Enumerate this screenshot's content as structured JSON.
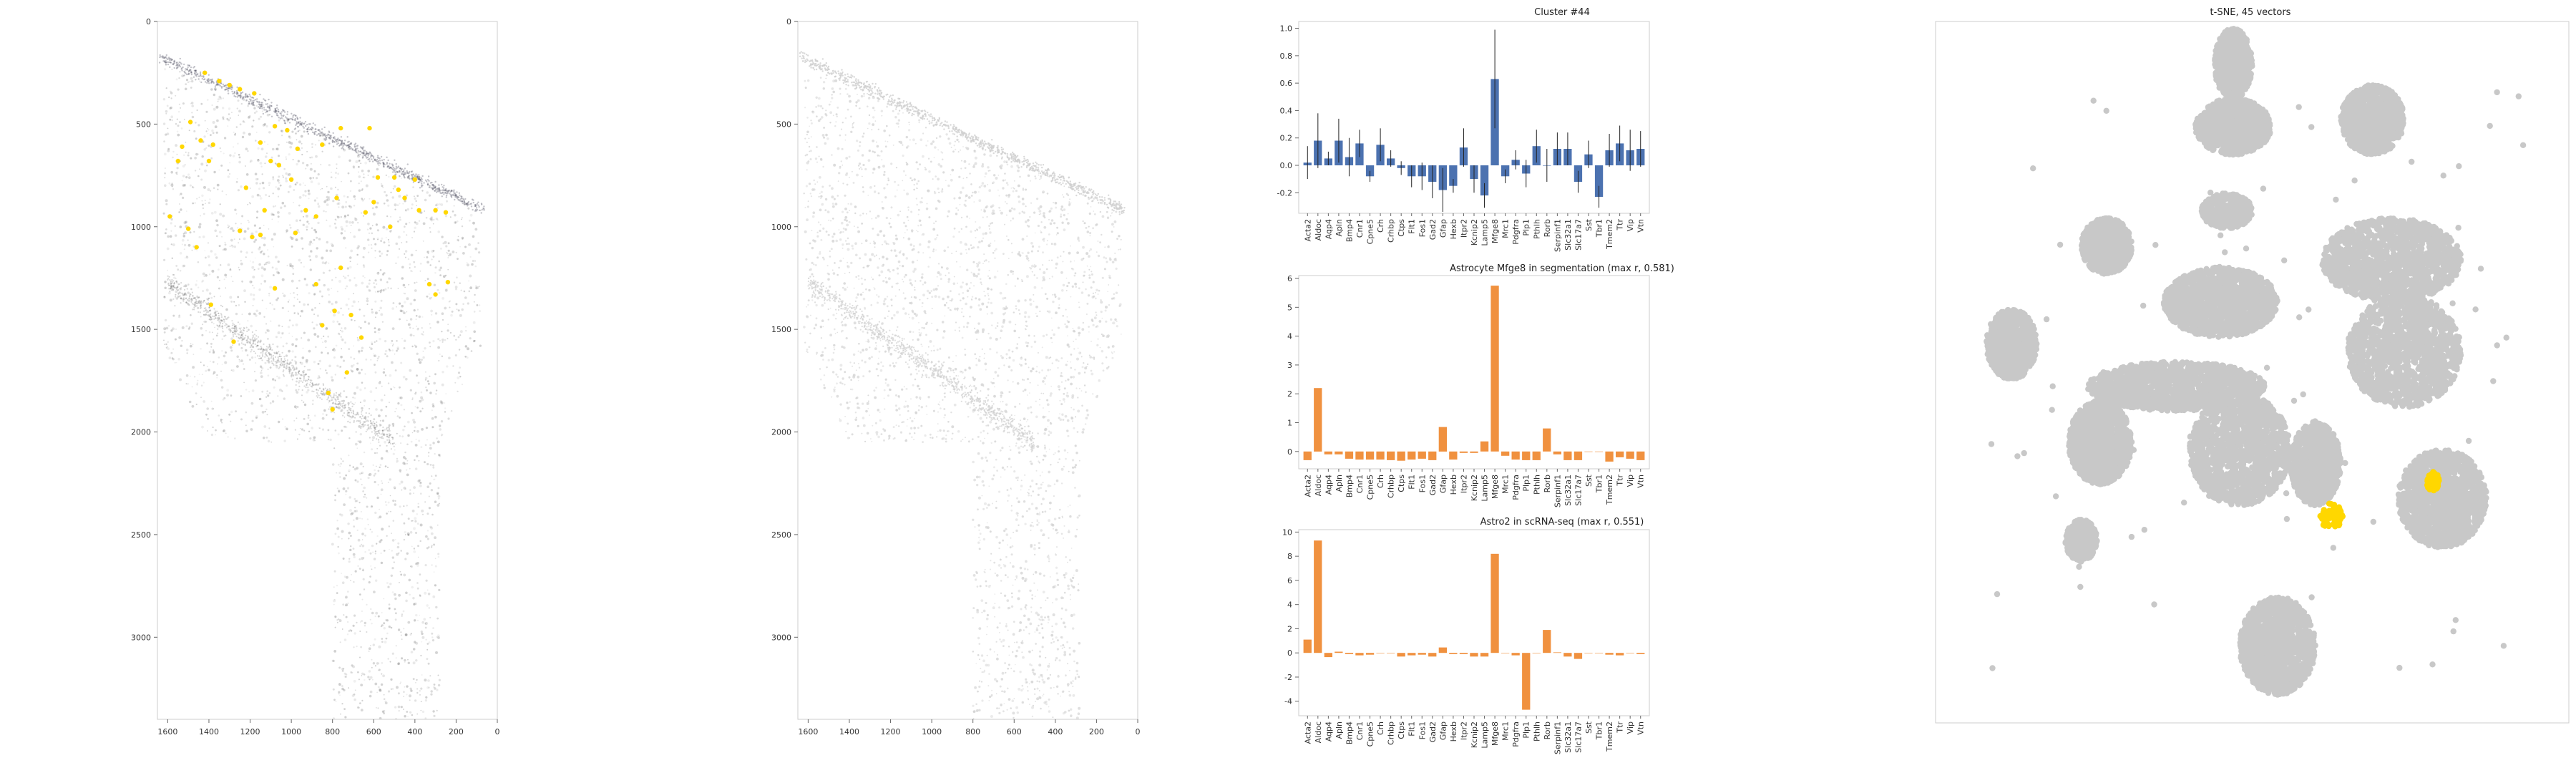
{
  "colors": {
    "bar_blue": "#4c72b0",
    "bar_orange": "#f0913f",
    "tsne_gray": "#c8c8c8",
    "highlight_yellow": "#ffd700",
    "tissue_gray": "#d4d4d4",
    "axis_frame": "#cccccc"
  },
  "chart_data": [
    {
      "id": "spatial_left",
      "type": "scatter",
      "title": "",
      "xlim": [
        1650,
        0
      ],
      "ylim": [
        3400,
        0
      ],
      "x_ticks": [
        "1600",
        "1400",
        "1200",
        "1000",
        "800",
        "600",
        "400",
        "200",
        "0"
      ],
      "y_ticks": [
        "0",
        "500",
        "1000",
        "1500",
        "2000",
        "2500",
        "3000"
      ],
      "highlight_points": [
        [
          1420,
          250
        ],
        [
          1350,
          290
        ],
        [
          1300,
          310
        ],
        [
          1250,
          330
        ],
        [
          1180,
          350
        ],
        [
          1490,
          490
        ],
        [
          1530,
          610
        ],
        [
          1440,
          580
        ],
        [
          1380,
          600
        ],
        [
          1550,
          680
        ],
        [
          1400,
          680
        ],
        [
          1150,
          590
        ],
        [
          1080,
          510
        ],
        [
          1020,
          530
        ],
        [
          970,
          620
        ],
        [
          850,
          600
        ],
        [
          760,
          520
        ],
        [
          620,
          520
        ],
        [
          580,
          760
        ],
        [
          500,
          760
        ],
        [
          480,
          820
        ],
        [
          450,
          860
        ],
        [
          380,
          920
        ],
        [
          400,
          770
        ],
        [
          300,
          920
        ],
        [
          250,
          930
        ],
        [
          1100,
          680
        ],
        [
          1060,
          700
        ],
        [
          1000,
          770
        ],
        [
          1220,
          810
        ],
        [
          1130,
          920
        ],
        [
          1250,
          1020
        ],
        [
          1150,
          1040
        ],
        [
          930,
          920
        ],
        [
          880,
          950
        ],
        [
          780,
          860
        ],
        [
          640,
          930
        ],
        [
          600,
          880
        ],
        [
          520,
          1000
        ],
        [
          1590,
          950
        ],
        [
          1500,
          1010
        ],
        [
          1460,
          1100
        ],
        [
          1190,
          1050
        ],
        [
          980,
          1030
        ],
        [
          760,
          1200
        ],
        [
          330,
          1280
        ],
        [
          300,
          1330
        ],
        [
          240,
          1270
        ],
        [
          1390,
          1380
        ],
        [
          1280,
          1560
        ],
        [
          1080,
          1300
        ],
        [
          880,
          1280
        ],
        [
          790,
          1410
        ],
        [
          710,
          1430
        ],
        [
          850,
          1480
        ],
        [
          730,
          1710
        ],
        [
          820,
          1810
        ],
        [
          800,
          1890
        ],
        [
          660,
          1540
        ]
      ]
    },
    {
      "id": "spatial_middle",
      "type": "scatter",
      "title": "",
      "xlim": [
        1650,
        0
      ],
      "ylim": [
        3400,
        0
      ],
      "x_ticks": [
        "1600",
        "1400",
        "1200",
        "1000",
        "800",
        "600",
        "400",
        "200",
        "0"
      ],
      "y_ticks": [
        "0",
        "500",
        "1000",
        "1500",
        "2000",
        "2500",
        "3000"
      ]
    },
    {
      "id": "cluster_bar",
      "type": "bar",
      "title": "Cluster #44",
      "ylim": [
        -0.35,
        1.05
      ],
      "y_ticks": [
        "1.0",
        "0.8",
        "0.6",
        "0.4",
        "0.2",
        "0.0",
        "-0.2"
      ],
      "y_tick_values": [
        1.0,
        0.8,
        0.6,
        0.4,
        0.2,
        0.0,
        -0.2
      ],
      "categories": [
        "Acta2",
        "Aldoc",
        "Aqp4",
        "Apln",
        "Bmp4",
        "Cnr1",
        "Cpne5",
        "Crh",
        "Crhbp",
        "Ctps",
        "Flt1",
        "Fos1",
        "Gad2",
        "Gfap",
        "Hexb",
        "Itpr2",
        "Kcnip2",
        "Lamp5",
        "Mfge8",
        "Mrc1",
        "Pdgfra",
        "Plp1",
        "Pthlh",
        "Rorb",
        "Serpinf1",
        "Slc32a1",
        "Slc17a7",
        "Sst",
        "Tbr1",
        "Tmem2",
        "Ttr",
        "Vip",
        "Vtn"
      ],
      "values": [
        0.02,
        0.18,
        0.05,
        0.18,
        0.06,
        0.16,
        -0.08,
        0.15,
        0.05,
        -0.02,
        -0.08,
        -0.08,
        -0.12,
        -0.18,
        -0.15,
        0.13,
        -0.1,
        -0.22,
        0.63,
        -0.08,
        0.04,
        -0.06,
        0.14,
        0.0,
        0.12,
        0.12,
        -0.12,
        0.08,
        -0.23,
        0.11,
        0.16,
        0.11,
        0.12
      ],
      "errors": [
        0.12,
        0.2,
        0.05,
        0.16,
        0.14,
        0.1,
        0.04,
        0.12,
        0.06,
        0.05,
        0.08,
        0.1,
        0.12,
        0.16,
        0.05,
        0.14,
        0.1,
        0.09,
        0.36,
        0.05,
        0.07,
        0.1,
        0.12,
        0.12,
        0.12,
        0.12,
        0.08,
        0.1,
        0.08,
        0.12,
        0.13,
        0.15,
        0.13
      ]
    },
    {
      "id": "astro_seg_bar",
      "type": "bar",
      "title": "Astrocyte Mfge8 in segmentation (max r, 0.581)",
      "ylim": [
        -0.6,
        6.1
      ],
      "y_ticks": [
        "6",
        "5",
        "4",
        "3",
        "2",
        "1",
        "0"
      ],
      "y_tick_values": [
        6,
        5,
        4,
        3,
        2,
        1,
        0
      ],
      "categories": [
        "Acta2",
        "Aldoc",
        "Aqp4",
        "Apln",
        "Bmp4",
        "Cnr1",
        "Cpne5",
        "Crh",
        "Crhbp",
        "Ctps",
        "Flt1",
        "Fos1",
        "Gad2",
        "Gfap",
        "Hexb",
        "Itpr2",
        "Kcnip2",
        "Lamp5",
        "Mfge8",
        "Mrc1",
        "Pdgfra",
        "Plp1",
        "Pthlh",
        "Rorb",
        "Serpinf1",
        "Slc32a1",
        "Slc17a7",
        "Sst",
        "Tbr1",
        "Tmem2",
        "Ttr",
        "Vip",
        "Vtn"
      ],
      "values": [
        -0.3,
        2.2,
        -0.1,
        -0.1,
        -0.25,
        -0.28,
        -0.28,
        -0.28,
        -0.3,
        -0.32,
        -0.28,
        -0.25,
        -0.3,
        0.85,
        -0.28,
        -0.05,
        -0.05,
        0.35,
        5.75,
        -0.15,
        -0.28,
        -0.3,
        -0.3,
        0.8,
        -0.1,
        -0.3,
        -0.3,
        0.0,
        0.0,
        -0.35,
        -0.2,
        -0.25,
        -0.3
      ]
    },
    {
      "id": "astro_sc_bar",
      "type": "bar",
      "title": "Astro2 in scRNA-seq (max r, 0.551)",
      "ylim": [
        -5.2,
        10.2
      ],
      "y_ticks": [
        "10",
        "8",
        "6",
        "4",
        "2",
        "0",
        "-2",
        "-4"
      ],
      "y_tick_values": [
        10,
        8,
        6,
        4,
        2,
        0,
        -2,
        -4
      ],
      "categories": [
        "Acta2",
        "Aldoc",
        "Aqp4",
        "Apln",
        "Bmp4",
        "Cnr1",
        "Cpne5",
        "Crh",
        "Crhbp",
        "Ctps",
        "Flt1",
        "Fos1",
        "Gad2",
        "Gfap",
        "Hexb",
        "Itpr2",
        "Kcnip2",
        "Lamp5",
        "Mfge8",
        "Mrc1",
        "Pdgfra",
        "Plp1",
        "Pthlh",
        "Rorb",
        "Serpinf1",
        "Slc32a1",
        "Slc17a7",
        "Sst",
        "Tbr1",
        "Tmem2",
        "Ttr",
        "Vip",
        "Vtn"
      ],
      "values": [
        1.1,
        9.3,
        -0.35,
        0.1,
        -0.1,
        -0.2,
        -0.15,
        0.0,
        0.0,
        -0.3,
        -0.2,
        -0.15,
        -0.3,
        0.45,
        -0.1,
        -0.1,
        -0.3,
        -0.3,
        8.2,
        0.0,
        -0.2,
        -4.7,
        0.0,
        1.9,
        0.05,
        -0.3,
        -0.5,
        0.0,
        0.0,
        -0.15,
        -0.2,
        0.0,
        -0.1
      ]
    },
    {
      "id": "tsne",
      "type": "scatter",
      "title": "t-SNE, 45 vectors",
      "clusters": [
        {
          "cx": 0.47,
          "cy": 0.06,
          "rx": 0.03,
          "ry": 0.05
        },
        {
          "cx": 0.47,
          "cy": 0.15,
          "rx": 0.06,
          "ry": 0.04
        },
        {
          "cx": 0.69,
          "cy": 0.14,
          "rx": 0.05,
          "ry": 0.05
        },
        {
          "cx": 0.46,
          "cy": 0.27,
          "rx": 0.04,
          "ry": 0.025
        },
        {
          "cx": 0.27,
          "cy": 0.32,
          "rx": 0.04,
          "ry": 0.04
        },
        {
          "cx": 0.12,
          "cy": 0.46,
          "rx": 0.04,
          "ry": 0.05
        },
        {
          "cx": 0.72,
          "cy": 0.34,
          "rx": 0.11,
          "ry": 0.06
        },
        {
          "cx": 0.74,
          "cy": 0.47,
          "rx": 0.09,
          "ry": 0.08
        },
        {
          "cx": 0.45,
          "cy": 0.4,
          "rx": 0.09,
          "ry": 0.05
        },
        {
          "cx": 0.38,
          "cy": 0.52,
          "rx": 0.14,
          "ry": 0.035
        },
        {
          "cx": 0.26,
          "cy": 0.6,
          "rx": 0.05,
          "ry": 0.06
        },
        {
          "cx": 0.48,
          "cy": 0.61,
          "rx": 0.08,
          "ry": 0.08
        },
        {
          "cx": 0.6,
          "cy": 0.63,
          "rx": 0.04,
          "ry": 0.06
        },
        {
          "cx": 0.8,
          "cy": 0.68,
          "rx": 0.07,
          "ry": 0.07
        },
        {
          "cx": 0.23,
          "cy": 0.74,
          "rx": 0.025,
          "ry": 0.03
        },
        {
          "cx": 0.54,
          "cy": 0.89,
          "rx": 0.06,
          "ry": 0.07
        }
      ],
      "highlight_clusters": [
        {
          "cx": 0.625,
          "cy": 0.705,
          "rx": 0.018,
          "ry": 0.018
        },
        {
          "cx": 0.785,
          "cy": 0.655,
          "rx": 0.01,
          "ry": 0.014
        }
      ]
    }
  ]
}
